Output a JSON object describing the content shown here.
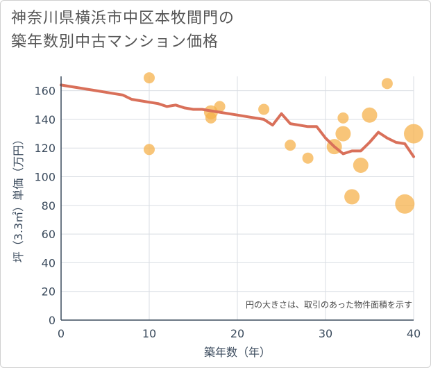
{
  "title_lines": [
    "神奈川県横浜市中区本牧間門の",
    "築年数別中古マンション価格"
  ],
  "chart_data": {
    "type": "scatter",
    "title": "神奈川県横浜市中区本牧間門の築年数別中古マンション価格",
    "xlabel": "築年数（年）",
    "ylabel": "坪（3.3㎡）単価（万円）",
    "xlim": [
      0,
      40
    ],
    "ylim": [
      0,
      170
    ],
    "xticks": [
      0,
      10,
      20,
      30,
      40
    ],
    "yticks": [
      0,
      20,
      40,
      60,
      80,
      100,
      120,
      140,
      160
    ],
    "note": "円の大きさは、取引のあった物件面積を示す",
    "colors": {
      "bubble": "#f5b14c",
      "line": "#d9705a",
      "grid": "#d9dde3",
      "axis": "#3a4a5c"
    },
    "trend": {
      "x": [
        0,
        1,
        2,
        3,
        4,
        5,
        6,
        7,
        8,
        9,
        10,
        11,
        12,
        13,
        14,
        15,
        16,
        17,
        18,
        19,
        20,
        21,
        22,
        23,
        24,
        25,
        26,
        27,
        28,
        29,
        30,
        31,
        32,
        33,
        34,
        35,
        36,
        37,
        38,
        39,
        40
      ],
      "y": [
        164,
        163,
        162,
        161,
        160,
        159,
        158,
        157,
        154,
        153,
        152,
        151,
        149,
        150,
        148,
        147,
        147,
        146,
        145,
        144,
        143,
        142,
        141,
        140,
        136,
        144,
        137,
        136,
        135,
        135,
        127,
        121,
        116,
        118,
        118,
        124,
        131,
        127,
        124,
        123,
        114
      ]
    },
    "bubbles": [
      {
        "x": 10,
        "y": 169,
        "size": 8
      },
      {
        "x": 10,
        "y": 119,
        "size": 8
      },
      {
        "x": 17,
        "y": 145,
        "size": 10
      },
      {
        "x": 17,
        "y": 141,
        "size": 8
      },
      {
        "x": 18,
        "y": 149,
        "size": 8
      },
      {
        "x": 23,
        "y": 147,
        "size": 8
      },
      {
        "x": 26,
        "y": 122,
        "size": 8
      },
      {
        "x": 28,
        "y": 113,
        "size": 8
      },
      {
        "x": 31,
        "y": 121,
        "size": 11
      },
      {
        "x": 32,
        "y": 141,
        "size": 8
      },
      {
        "x": 32,
        "y": 130,
        "size": 11
      },
      {
        "x": 33,
        "y": 86,
        "size": 11
      },
      {
        "x": 34,
        "y": 108,
        "size": 11
      },
      {
        "x": 35,
        "y": 143,
        "size": 11
      },
      {
        "x": 37,
        "y": 165,
        "size": 8
      },
      {
        "x": 39,
        "y": 81,
        "size": 14
      },
      {
        "x": 40,
        "y": 130,
        "size": 14
      }
    ]
  }
}
